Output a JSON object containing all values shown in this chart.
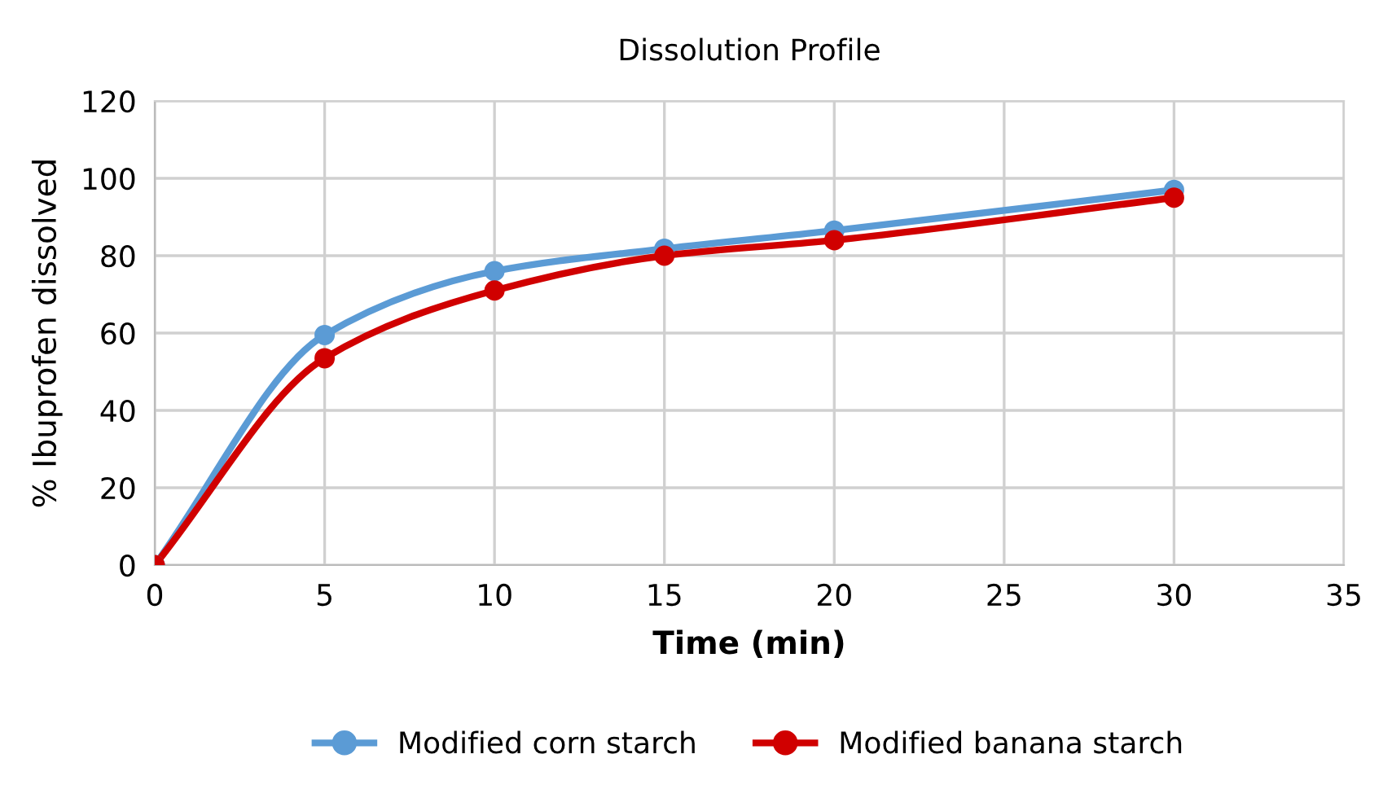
{
  "chart_data": {
    "type": "line",
    "title": "Dissolution Profile",
    "xlabel": "Time (min)",
    "ylabel": "% Ibuprofen dissolved",
    "x": [
      0,
      5,
      10,
      15,
      20,
      30
    ],
    "series": [
      {
        "name": "Modified corn starch",
        "color": "#5b9bd5",
        "values": [
          0,
          59.5,
          76,
          81.8,
          86.5,
          97
        ]
      },
      {
        "name": "Modified banana starch",
        "color": "#d00000",
        "values": [
          0,
          53.5,
          71,
          80,
          84,
          95
        ]
      }
    ],
    "xlim": [
      0,
      35
    ],
    "xticks": [
      0,
      5,
      10,
      15,
      20,
      25,
      30,
      35
    ],
    "ylim": [
      0,
      120
    ],
    "yticks": [
      0,
      20,
      40,
      60,
      80,
      100,
      120
    ],
    "grid": true,
    "legend": "bottom",
    "marker": "circle",
    "line_style": "solid"
  }
}
